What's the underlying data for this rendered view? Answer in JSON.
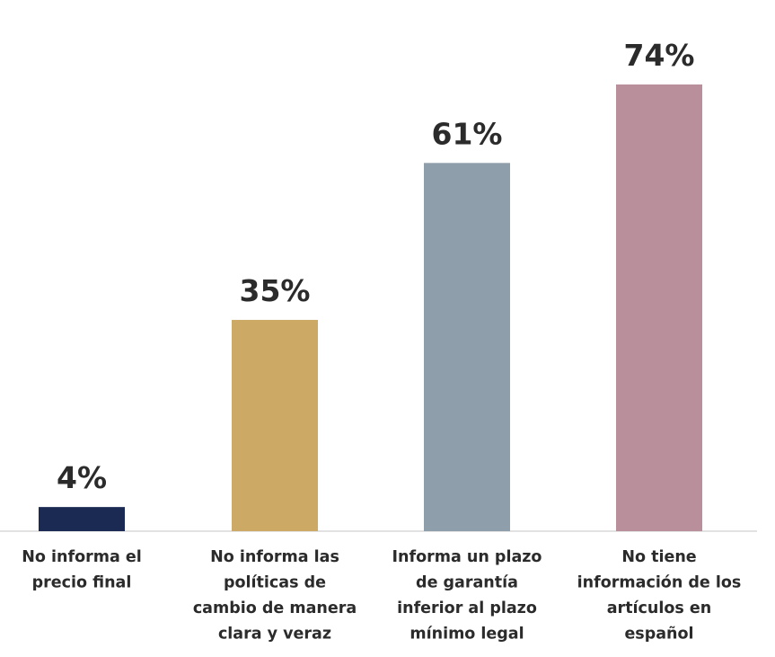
{
  "chart_data": {
    "type": "bar",
    "categories": [
      [
        "No informa el",
        "precio final"
      ],
      [
        "No informa las",
        "políticas de",
        "cambio de manera",
        "clara y veraz"
      ],
      [
        "Informa un plazo",
        "de garantía",
        "inferior al plazo",
        "mínimo legal"
      ],
      [
        "No tiene",
        "información de los",
        "artículos en",
        "español"
      ]
    ],
    "values": [
      4,
      35,
      61,
      74
    ],
    "data_labels": [
      "4%",
      "35%",
      "61%",
      "74%"
    ],
    "colors": [
      "#1b2a52",
      "#cca965",
      "#8e9eab",
      "#b88f9b"
    ],
    "title": "",
    "xlabel": "",
    "ylabel": "",
    "ylim": [
      0,
      74
    ],
    "grid": false,
    "legend": "none"
  }
}
